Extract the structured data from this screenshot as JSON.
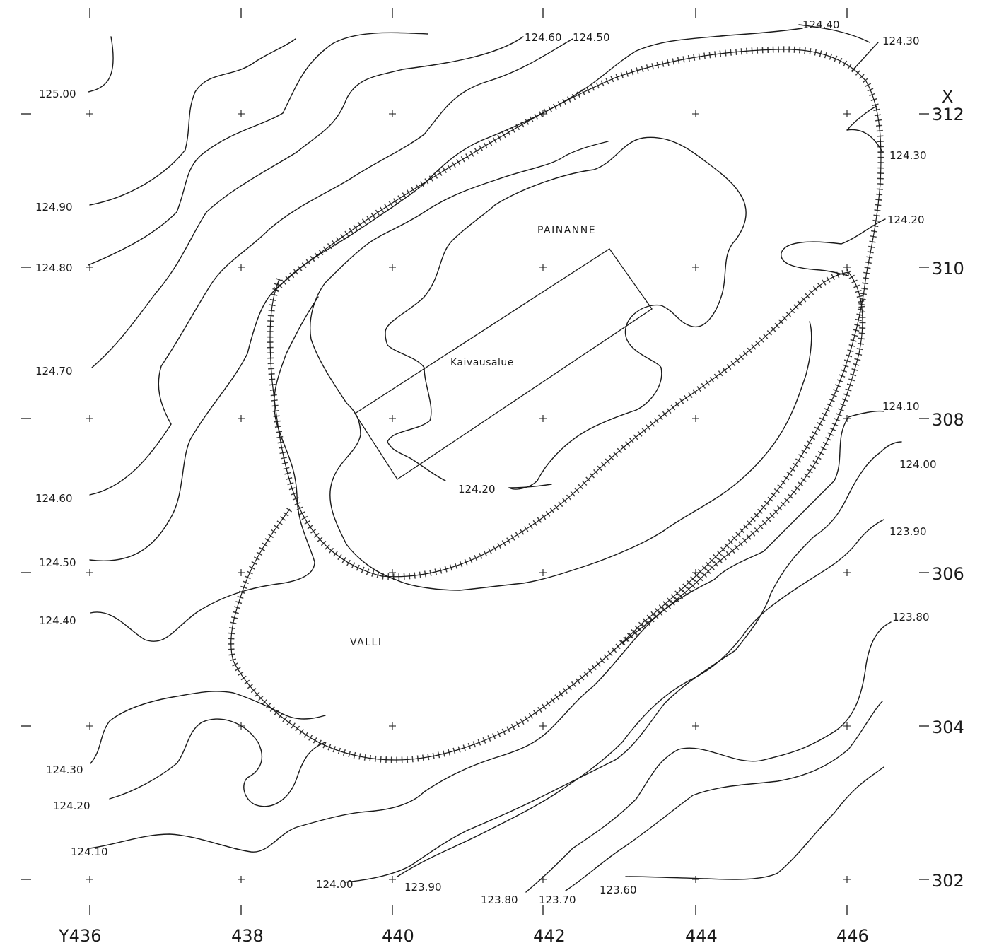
{
  "map": {
    "axis": {
      "x_axis_name": "X",
      "y_axis_ticks": [
        "Y436",
        "438",
        "440",
        "442",
        "444",
        "446"
      ],
      "x_axis_ticks": [
        "312",
        "310",
        "308",
        "306",
        "304",
        "302"
      ]
    },
    "areas": {
      "painanne": "PAINANNE",
      "kaivausalue": "Kaivausalue",
      "valli": "VALLI"
    },
    "contour_labels": {
      "c12500": "125.00",
      "c12490": "124.90",
      "c12480": "124.80",
      "c12470": "124.70",
      "c12460_left": "124.60",
      "c12450_left": "124.50",
      "c12440_left": "124.40",
      "c12430_left": "124.30",
      "c12420_left": "124.20",
      "c12410_left": "124.10",
      "c12460_top": "124.60",
      "c12450_top": "124.50",
      "c12440_top": "124.40",
      "c12430_top": "124.30",
      "c12430_right": "124.30",
      "c12420_right": "124.20",
      "c12410_right": "124.10",
      "c12400_right": "124.00",
      "c12390_right": "123.90",
      "c12380_right": "123.80",
      "c12420_inner": "124.20",
      "c12400_bottom": "124.00",
      "c12390_bottom": "123.90",
      "c12380_bottom": "123.80",
      "c12370_bottom": "123.70",
      "c12360_bottom": "123.60"
    }
  }
}
